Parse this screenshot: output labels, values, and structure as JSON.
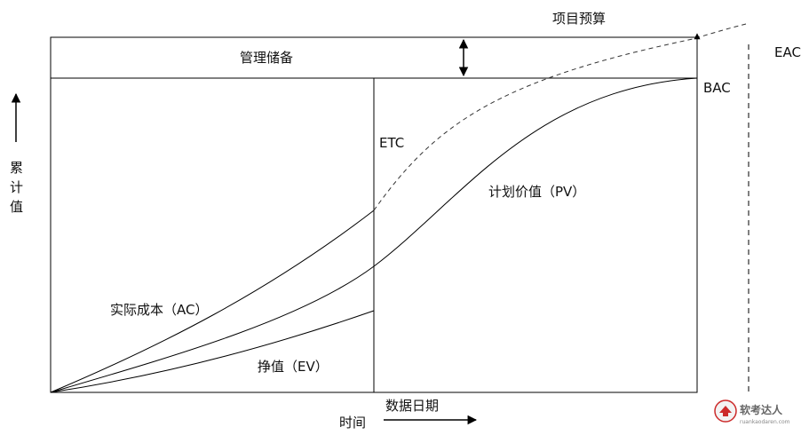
{
  "labels": {
    "project_budget": "项目预算",
    "management_reserve": "管理储备",
    "eac": "EAC",
    "bac": "BAC",
    "etc": "ETC",
    "planned_value": "计划价值（PV）",
    "actual_cost": "实际成本（AC）",
    "earned_value": "挣值（EV）",
    "data_date": "数据日期",
    "time_axis": "时间",
    "y_axis_chars": [
      "累",
      "计",
      "值"
    ]
  },
  "watermark": {
    "title": "软考达人",
    "url": "ruankaodaren.com"
  },
  "colors": {
    "line": "#000000",
    "dashed_line": "#555555",
    "watermark_icon": "#cc2b2b"
  }
}
